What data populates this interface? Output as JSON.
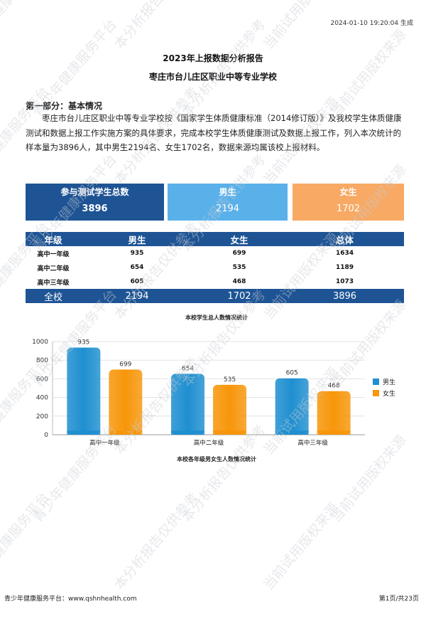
{
  "header": {
    "timestamp": "2024-01-10 19:20:04 生成"
  },
  "report": {
    "title": "2023年上报数据分析报告",
    "school": "枣庄市台儿庄区职业中等专业学校"
  },
  "section": {
    "heading": "第一部分：基本情况",
    "intro": "枣庄市台儿庄区职业中等专业学校按《国家学生体质健康标准（2014修订版）》及我校学生体质健康测试和数据上报工作实施方案的具体要求，完成本校学生体质健康测试及数据上报工作，列入本次统计的样本量为3896人，其中男生2194名、女生1702名，数据来源均属该校上报材料。"
  },
  "summary": {
    "total_label": "参与测试学生总数",
    "total_value": "3896",
    "male_label": "男生",
    "male_value": "2194",
    "female_label": "女生",
    "female_value": "1702"
  },
  "table": {
    "headers": [
      "年级",
      "男生",
      "女生",
      "总体"
    ],
    "rows": [
      [
        "高中一年级",
        "935",
        "699",
        "1634"
      ],
      [
        "高中二年级",
        "654",
        "535",
        "1189"
      ],
      [
        "高中三年级",
        "605",
        "468",
        "1073"
      ]
    ],
    "total": [
      "全校",
      "2194",
      "1702",
      "3896"
    ]
  },
  "chart_data": {
    "type": "bar",
    "title": "本校学生总人数情况统计",
    "caption": "本校各年级男女生人数情况统计",
    "categories": [
      "高中一年级",
      "高中二年级",
      "高中三年级"
    ],
    "series": [
      {
        "name": "男生",
        "values": [
          935,
          654,
          605
        ],
        "color": "#1f8fd0"
      },
      {
        "name": "女生",
        "values": [
          699,
          535,
          468
        ],
        "color": "#f7960a"
      }
    ],
    "ylim": [
      0,
      1000
    ],
    "yticks": [
      0,
      200,
      400,
      600,
      800,
      1000
    ],
    "grid": true,
    "legend": "right"
  },
  "watermark": {
    "phrases": [
      "青少年健康服务平台",
      "本分析报告仅供参考",
      "当前试用版权来源"
    ],
    "color": "#c8ccd2"
  },
  "footer": {
    "left": "青少年健康服务平台：www.qshnhealth.com",
    "right": "第1页/共23页"
  }
}
